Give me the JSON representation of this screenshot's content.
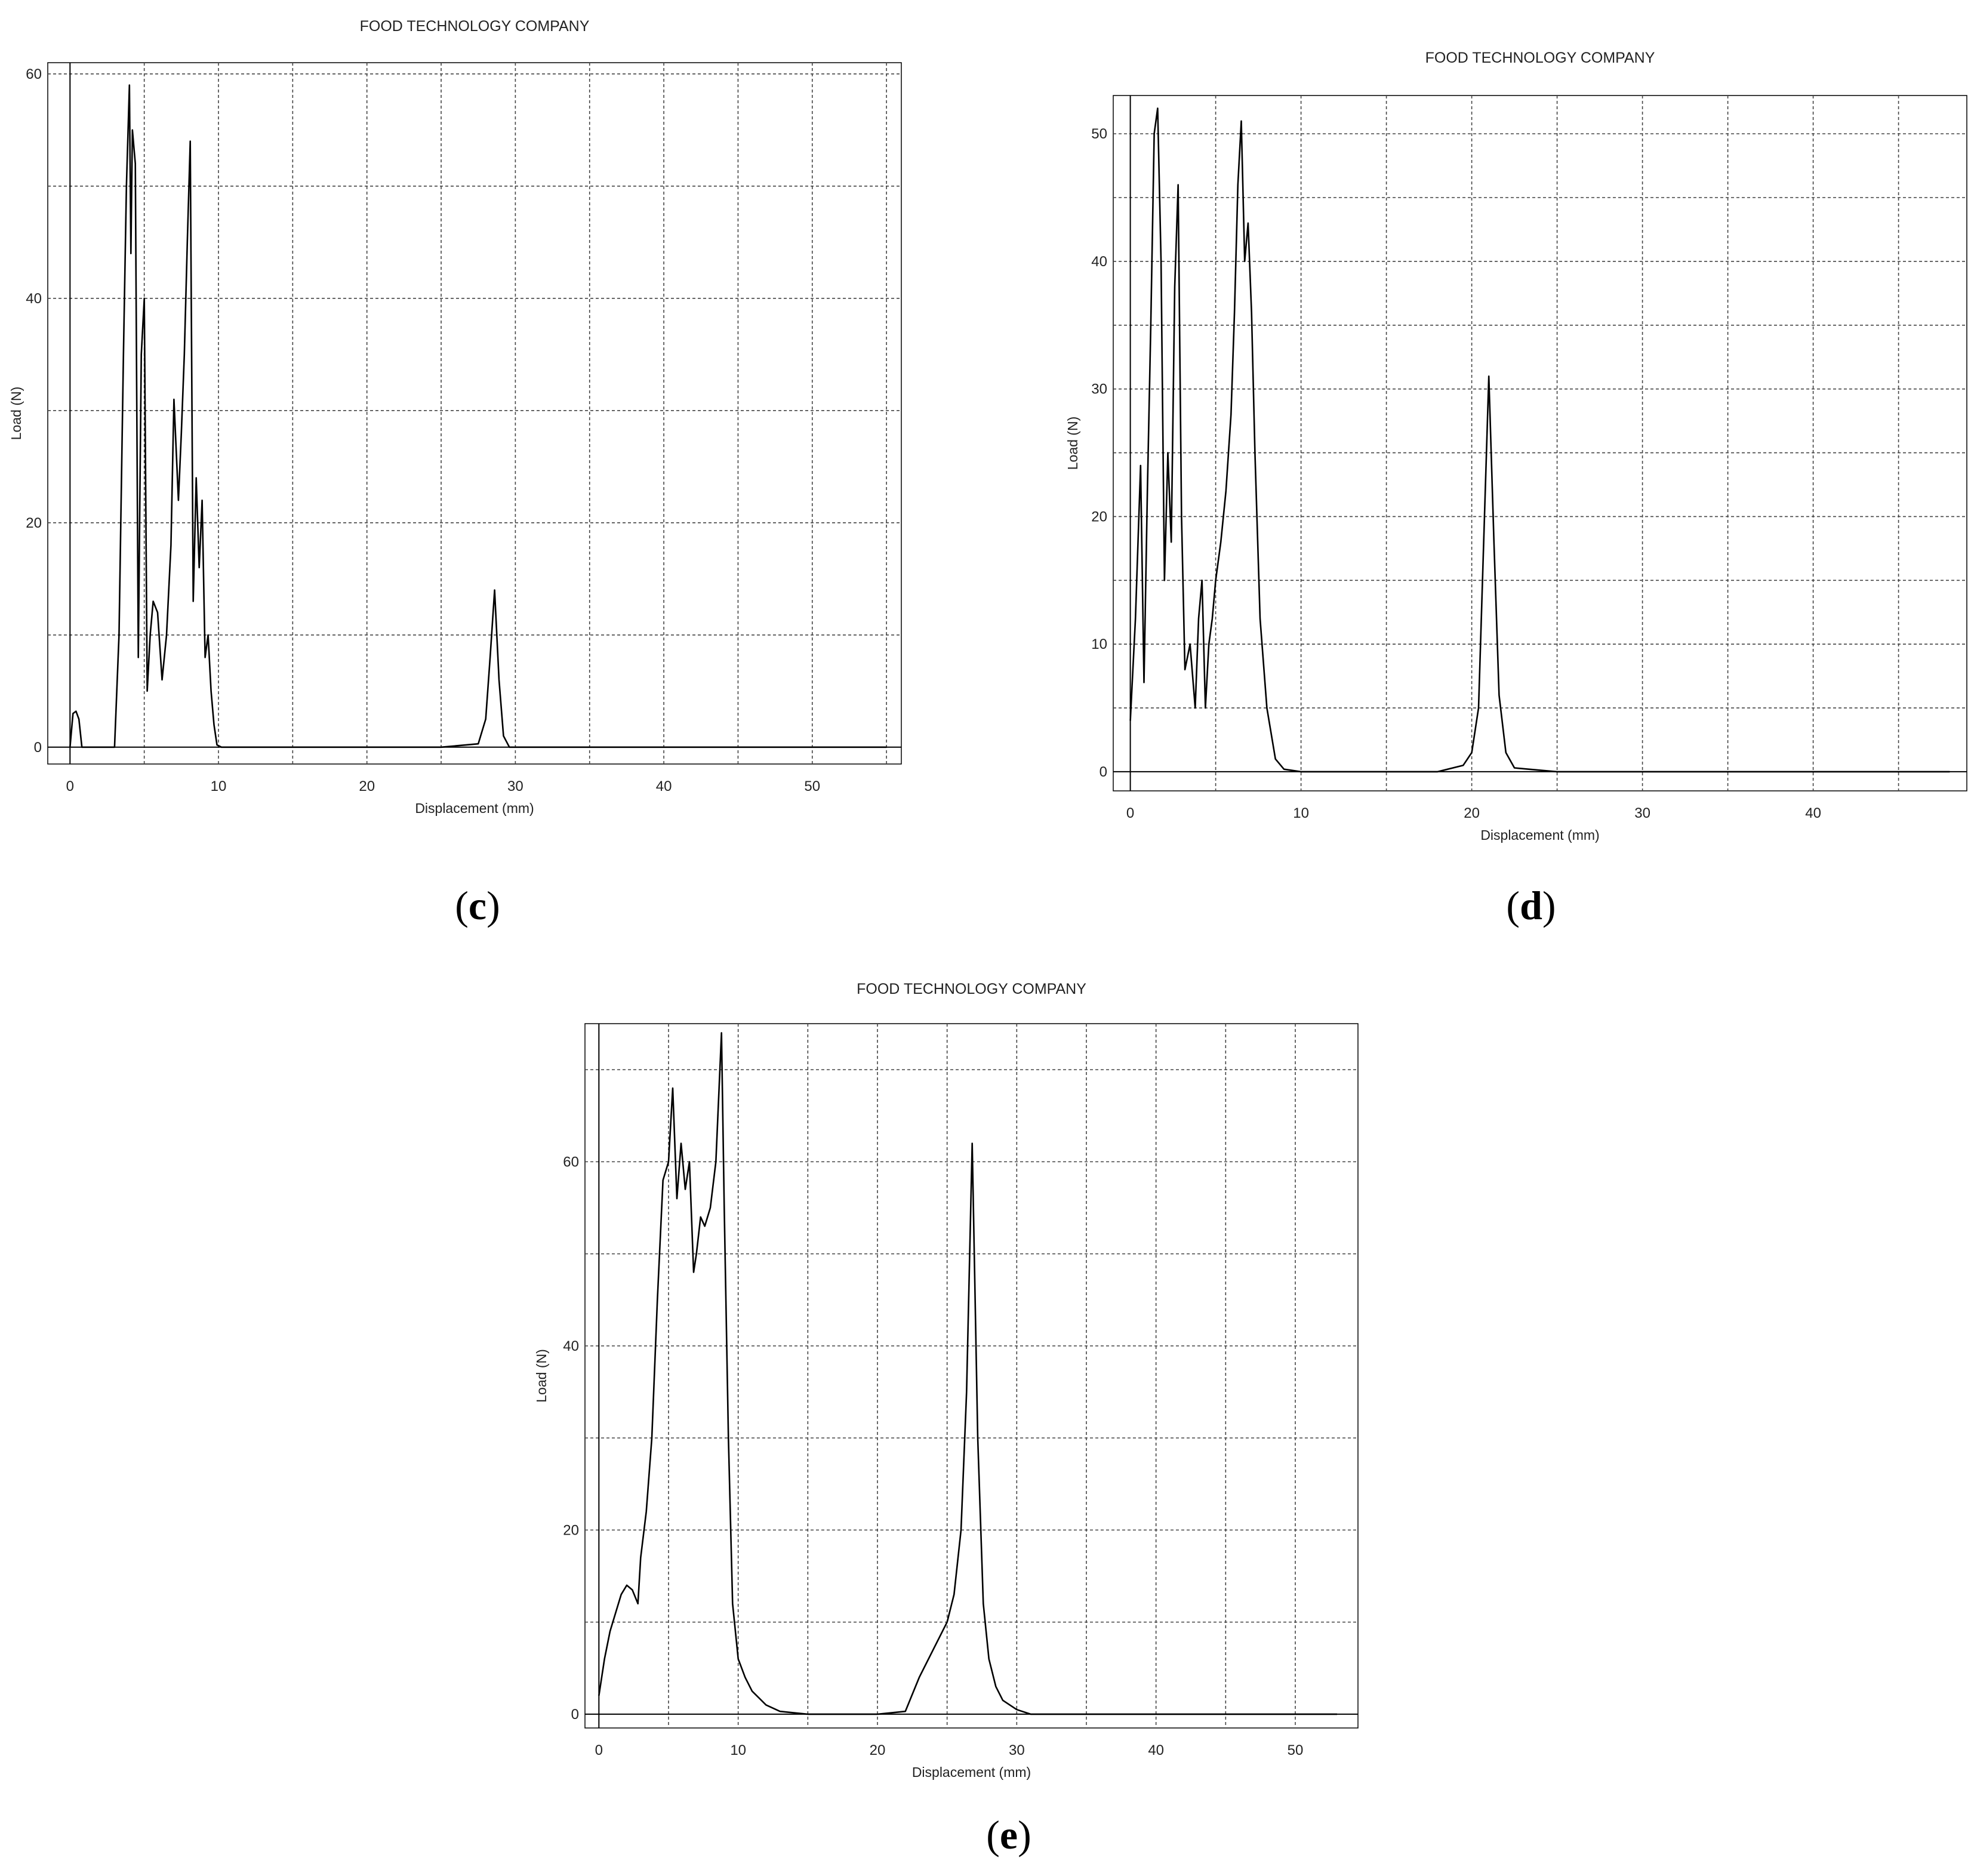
{
  "chart_data": [
    {
      "id": "c",
      "type": "line",
      "title": "FOOD TECHNOLOGY COMPANY",
      "xlabel": "Displacement (mm)",
      "ylabel": "Load (N)",
      "xlim": [
        -1.5,
        56
      ],
      "ylim": [
        -1.5,
        61
      ],
      "xticks": [
        0,
        10,
        20,
        30,
        40,
        50
      ],
      "yticks": [
        0,
        20,
        40,
        60
      ],
      "grid": true,
      "series": [
        {
          "color": "#000000",
          "x": [
            0,
            0.2,
            0.4,
            0.6,
            0.8,
            3.0,
            3.3,
            3.6,
            3.8,
            4.0,
            4.1,
            4.2,
            4.4,
            4.6,
            4.8,
            5.0,
            5.2,
            5.4,
            5.6,
            5.9,
            6.2,
            6.5,
            6.8,
            7.0,
            7.3,
            7.5,
            7.7,
            7.9,
            8.1,
            8.3,
            8.5,
            8.7,
            8.9,
            9.1,
            9.3,
            9.5,
            9.7,
            9.9,
            10.2,
            10.6,
            11,
            15,
            20,
            25,
            27.5,
            28.0,
            28.3,
            28.6,
            28.9,
            29.2,
            29.6,
            30,
            35,
            40,
            45,
            50,
            55
          ],
          "y": [
            0,
            3.0,
            3.2,
            2.5,
            0,
            0,
            10,
            35,
            50,
            59,
            44,
            55,
            52,
            8,
            35,
            40,
            5,
            10,
            13,
            12,
            6,
            10,
            18,
            31,
            22,
            28,
            35,
            45,
            54,
            13,
            24,
            16,
            22,
            8,
            10,
            5,
            2,
            0.2,
            0,
            0,
            0,
            0,
            0,
            0,
            0.3,
            2.5,
            8,
            14,
            6,
            1,
            0,
            0,
            0,
            0,
            0,
            0,
            0
          ]
        }
      ]
    },
    {
      "id": "d",
      "type": "line",
      "title": "FOOD TECHNOLOGY COMPANY",
      "xlabel": "Displacement (mm)",
      "ylabel": "Load (N)",
      "xlim": [
        -1,
        49
      ],
      "ylim": [
        -1.5,
        53
      ],
      "xticks": [
        0,
        10,
        20,
        30,
        40
      ],
      "yticks": [
        0,
        10,
        20,
        30,
        40,
        50
      ],
      "grid": true,
      "series": [
        {
          "color": "#000000",
          "x": [
            0,
            0.3,
            0.6,
            0.8,
            1.0,
            1.2,
            1.4,
            1.6,
            1.8,
            2.0,
            2.2,
            2.4,
            2.6,
            2.8,
            3.0,
            3.2,
            3.5,
            3.8,
            4.0,
            4.2,
            4.4,
            4.6,
            4.8,
            5.0,
            5.3,
            5.6,
            5.9,
            6.1,
            6.3,
            6.5,
            6.7,
            6.9,
            7.1,
            7.3,
            7.6,
            8.0,
            8.5,
            9.0,
            10,
            15,
            18,
            19.5,
            20.0,
            20.4,
            20.7,
            21.0,
            21.3,
            21.6,
            22.0,
            22.5,
            25,
            30,
            35,
            40,
            45,
            48
          ],
          "y": [
            4,
            12,
            24,
            7,
            22,
            35,
            50,
            52,
            40,
            15,
            25,
            18,
            38,
            46,
            20,
            8,
            10,
            5,
            12,
            15,
            5,
            10,
            12,
            15,
            18,
            22,
            28,
            36,
            46,
            51,
            40,
            43,
            36,
            25,
            12,
            5,
            1,
            0.2,
            0,
            0,
            0,
            0.5,
            1.5,
            5,
            18,
            31,
            18,
            6,
            1.5,
            0.3,
            0,
            0,
            0,
            0,
            0,
            0
          ]
        }
      ]
    },
    {
      "id": "e",
      "type": "line",
      "title": "FOOD TECHNOLOGY COMPANY",
      "xlabel": "Displacement (mm)",
      "ylabel": "Load (N)",
      "xlim": [
        -1,
        54.5
      ],
      "ylim": [
        -1.5,
        75
      ],
      "xticks": [
        0,
        10,
        20,
        30,
        40,
        50
      ],
      "yticks": [
        0,
        20,
        40,
        60
      ],
      "grid": true,
      "series": [
        {
          "color": "#000000",
          "x": [
            0,
            0.4,
            0.8,
            1.2,
            1.6,
            2.0,
            2.4,
            2.8,
            3.0,
            3.4,
            3.8,
            4.2,
            4.6,
            5.0,
            5.3,
            5.6,
            5.9,
            6.2,
            6.5,
            6.8,
            7.0,
            7.3,
            7.6,
            8.0,
            8.4,
            8.8,
            9.0,
            9.3,
            9.6,
            10.0,
            10.5,
            11.0,
            12.0,
            13.0,
            15,
            20,
            22,
            23,
            24,
            25,
            25.5,
            26.0,
            26.4,
            26.8,
            27.2,
            27.6,
            28.0,
            28.5,
            29.0,
            30.0,
            31.0,
            35,
            40,
            45,
            50,
            53
          ],
          "y": [
            2,
            6,
            9,
            11,
            13,
            14,
            13.5,
            12,
            17,
            22,
            30,
            45,
            58,
            60,
            68,
            56,
            62,
            57,
            60,
            48,
            50,
            54,
            53,
            55,
            60,
            74,
            55,
            30,
            12,
            6,
            4,
            2.5,
            1,
            0.3,
            0,
            0,
            0.3,
            4,
            7,
            10,
            13,
            20,
            35,
            62,
            30,
            12,
            6,
            3,
            1.5,
            0.5,
            0,
            0,
            0,
            0,
            0,
            0
          ]
        }
      ]
    }
  ],
  "captions": {
    "c": {
      "open": "(",
      "letter": "c",
      "close": ")"
    },
    "d": {
      "open": "(",
      "letter": "d",
      "close": ")"
    },
    "e": {
      "open": "(",
      "letter": "e",
      "close": ")"
    }
  }
}
